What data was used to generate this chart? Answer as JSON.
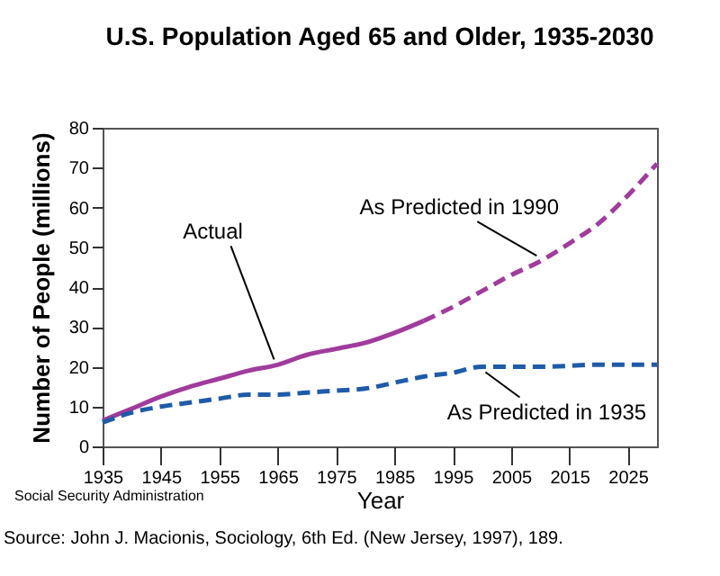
{
  "chart_data": {
    "type": "line",
    "title": "U.S. Population Aged 65 and Older, 1935-2030",
    "xlabel": "Year",
    "ylabel": "Number of People (millions)",
    "xlim": [
      1935,
      2030
    ],
    "xticks": [
      1935,
      1945,
      1955,
      1965,
      1975,
      1985,
      1995,
      2005,
      2015,
      2025
    ],
    "ylim": [
      0,
      80
    ],
    "yticks": [
      0,
      10,
      20,
      30,
      40,
      50,
      60,
      70,
      80
    ],
    "grid": false,
    "series": [
      {
        "name": "Actual",
        "color": "#a03c9c",
        "line_style": "solid",
        "x": [
          1935,
          1940,
          1945,
          1950,
          1955,
          1960,
          1965,
          1970,
          1975,
          1980,
          1985,
          1990
        ],
        "values": [
          6.5,
          9.5,
          12.5,
          15,
          17,
          19,
          20.5,
          23,
          24.5,
          26,
          28.5,
          31.5
        ]
      },
      {
        "name": "As Predicted in 1990",
        "color": "#a03c9c",
        "line_style": "dashed",
        "x": [
          1990,
          1995,
          2000,
          2005,
          2010,
          2015,
          2020,
          2025,
          2030
        ],
        "values": [
          31.5,
          35,
          39,
          43,
          46.5,
          51,
          56,
          63,
          71
        ]
      },
      {
        "name": "As Predicted in 1935",
        "color": "#1f5ba8",
        "line_style": "dashed",
        "x": [
          1935,
          1940,
          1945,
          1950,
          1955,
          1960,
          1965,
          1970,
          1975,
          1980,
          1985,
          1990,
          1995,
          2000,
          2010,
          2020,
          2030
        ],
        "values": [
          6,
          8.5,
          10,
          11,
          12,
          13,
          13,
          13.5,
          14,
          14.5,
          16,
          17.5,
          18.5,
          20,
          20,
          20.5,
          20.5
        ]
      }
    ],
    "annotations": [
      "Social Security Administration",
      "Source: John J. Macionis, Sociology, 6th Ed. (New Jersey, 1997), 189."
    ]
  }
}
